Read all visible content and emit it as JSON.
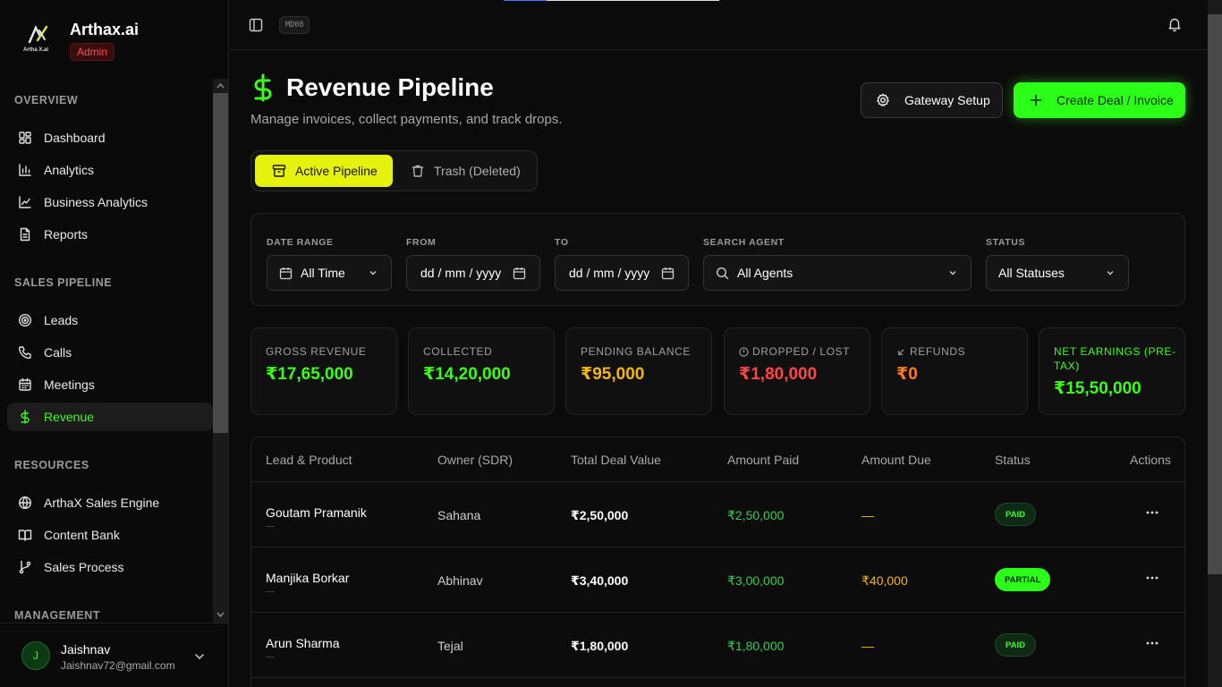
{
  "brand": {
    "name": "Arthax.ai",
    "logo_text": "Artha X.ai",
    "role_badge": "Admin"
  },
  "nav": {
    "sections": [
      {
        "title": "OVERVIEW",
        "items": [
          {
            "label": "Dashboard",
            "icon": "dashboard-icon"
          },
          {
            "label": "Analytics",
            "icon": "bar-chart-icon"
          },
          {
            "label": "Business Analytics",
            "icon": "line-chart-icon"
          },
          {
            "label": "Reports",
            "icon": "document-icon"
          }
        ]
      },
      {
        "title": "SALES PIPELINE",
        "items": [
          {
            "label": "Leads",
            "icon": "target-icon"
          },
          {
            "label": "Calls",
            "icon": "phone-icon"
          },
          {
            "label": "Meetings",
            "icon": "calendar-icon"
          },
          {
            "label": "Revenue",
            "icon": "dollar-icon",
            "active": true
          }
        ]
      },
      {
        "title": "RESOURCES",
        "items": [
          {
            "label": "ArthaX Sales Engine",
            "icon": "globe-icon"
          },
          {
            "label": "Content Bank",
            "icon": "book-icon"
          },
          {
            "label": "Sales Process",
            "icon": "git-branch-icon"
          }
        ]
      },
      {
        "title": "MANAGEMENT",
        "items": []
      }
    ]
  },
  "user": {
    "initial": "J",
    "name": "Jaishnav",
    "email": "Jaishnav72@gmail.com"
  },
  "topbar": {
    "build_badge": "MD08"
  },
  "page": {
    "title": "Revenue Pipeline",
    "subtitle": "Manage invoices, collect payments, and track drops.",
    "gateway_button": "Gateway Setup",
    "create_button": "Create Deal / Invoice",
    "tabs": {
      "active": "Active Pipeline",
      "trash": "Trash (Deleted)"
    }
  },
  "filters": {
    "date_range": {
      "label": "DATE RANGE",
      "value": "All Time"
    },
    "from": {
      "label": "FROM",
      "value": "dd / mm / yyyy"
    },
    "to": {
      "label": "TO",
      "value": "dd / mm / yyyy"
    },
    "agent": {
      "label": "SEARCH AGENT",
      "value": "All Agents"
    },
    "status": {
      "label": "STATUS",
      "value": "All Statuses"
    }
  },
  "stats": [
    {
      "label": "GROSS REVENUE",
      "value": "₹17,65,000",
      "color": "#39ff14"
    },
    {
      "label": "COLLECTED",
      "value": "₹14,20,000",
      "color": "#39ff14"
    },
    {
      "label": "PENDING BALANCE",
      "value": "₹95,000",
      "color": "#f5b800"
    },
    {
      "label": "DROPPED / LOST",
      "value": "₹1,80,000",
      "color": "#ff4444",
      "icon": "alert-circle-icon"
    },
    {
      "label": "REFUNDS",
      "value": "₹0",
      "color": "#ff7a1a",
      "icon": "arrow-down-left-icon"
    },
    {
      "label": "NET EARNINGS (PRE-TAX)",
      "value": "₹15,50,000",
      "color": "#39ff14",
      "label_color": "#39ff14"
    }
  ],
  "table": {
    "headers": [
      "Lead & Product",
      "Owner (SDR)",
      "Total Deal Value",
      "Amount Paid",
      "Amount Due",
      "Status",
      "Actions"
    ],
    "rows": [
      {
        "lead": "Goutam Pramanik",
        "product": "—",
        "owner": "Sahana",
        "total": "₹2,50,000",
        "paid": "₹2,50,000",
        "due": "—",
        "status": "PAID"
      },
      {
        "lead": "Manjika Borkar",
        "product": "—",
        "owner": "Abhinav",
        "total": "₹3,40,000",
        "paid": "₹3,00,000",
        "due": "₹40,000",
        "status": "PARTIAL"
      },
      {
        "lead": "Arun Sharma",
        "product": "—",
        "owner": "Tejal",
        "total": "₹1,80,000",
        "paid": "₹1,80,000",
        "due": "—",
        "status": "PAID"
      }
    ]
  },
  "colors": {
    "accent": "#39ff14",
    "highlight": "#e5f20b",
    "warning": "#f5b800",
    "danger": "#ff4444"
  }
}
